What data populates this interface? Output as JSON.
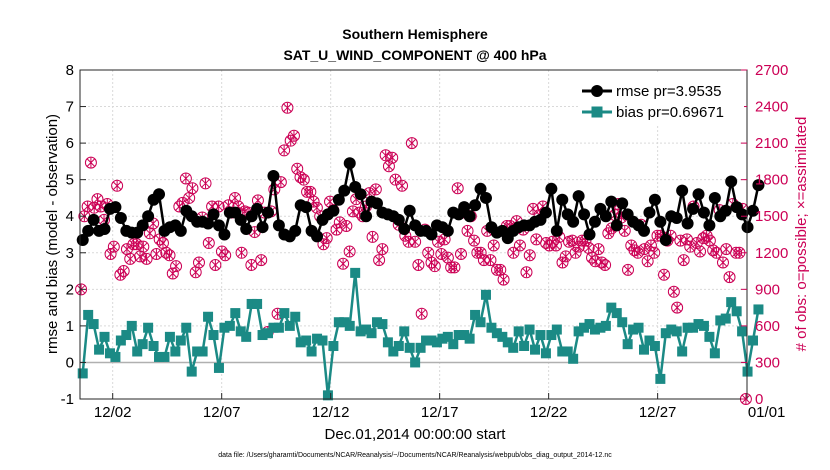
{
  "chart_data": {
    "type": "line",
    "title": "Southern Hemisphere",
    "subtitle": "SAT_U_WIND_COMPONENT @ 400 hPa",
    "xlabel": "Dec.01,2014 00:00:00 start",
    "ylabel_left": "rmse and bias (model - observation)",
    "ylabel_right": "# of obs: o=possible; ×=assimilated",
    "footnote": "data file: /Users/gharamti/Documents/NCAR/Reanalysis/~/Documents/NCAR/Reanalysis/webpub/obs_diag_output_2014-12.nc",
    "xlim": [
      0.5,
      31.1
    ],
    "ylim_left": [
      -1,
      8
    ],
    "ylim_right": [
      0,
      2700
    ],
    "yticks_left": [
      -1,
      0,
      1,
      2,
      3,
      4,
      5,
      6,
      7,
      8
    ],
    "yticks_right": [
      0,
      300,
      600,
      900,
      1200,
      1500,
      1800,
      2100,
      2400,
      2700
    ],
    "xticks": [
      {
        "day": 2,
        "label": "12/02"
      },
      {
        "day": 7,
        "label": "12/07"
      },
      {
        "day": 12,
        "label": "12/12"
      },
      {
        "day": 17,
        "label": "12/17"
      },
      {
        "day": 22,
        "label": "12/22"
      },
      {
        "day": 27,
        "label": "12/27"
      },
      {
        "day": 32,
        "label": "01/01"
      }
    ],
    "x_start": 0.625,
    "x_step": 0.25,
    "series": [
      {
        "name": "rmse",
        "legend": "rmse pr=3.9535",
        "color": "#000000",
        "marker": "circle",
        "values": [
          3.35,
          3.6,
          3.9,
          3.6,
          3.65,
          4.2,
          4.25,
          3.95,
          3.6,
          3.55,
          3.55,
          3.75,
          4.0,
          4.45,
          4.6,
          3.6,
          3.7,
          3.75,
          3.6,
          4.15,
          4.0,
          3.85,
          3.85,
          3.8,
          4.05,
          3.75,
          3.5,
          4.1,
          4.1,
          3.9,
          3.65,
          4.0,
          4.2,
          3.7,
          4.1,
          5.1,
          3.75,
          3.5,
          3.45,
          3.6,
          4.3,
          4.25,
          3.6,
          3.45,
          3.9,
          4.05,
          4.15,
          4.45,
          4.7,
          5.45,
          4.8,
          4.6,
          4.0,
          4.4,
          4.35,
          4.1,
          4.05,
          4.0,
          3.9,
          3.65,
          4.15,
          3.75,
          3.6,
          3.6,
          3.5,
          3.75,
          3.7,
          3.6,
          4.1,
          4.05,
          4.25,
          4.0,
          4.3,
          4.75,
          4.5,
          3.7,
          3.55,
          3.6,
          3.4,
          3.6,
          3.7,
          3.75,
          3.75,
          3.85,
          3.9,
          4.1,
          4.75,
          3.6,
          4.45,
          4.05,
          3.85,
          4.55,
          4.05,
          3.5,
          3.85,
          4.2,
          4.0,
          4.4,
          3.75,
          4.35,
          4.05,
          3.85,
          3.75,
          3.6,
          4.1,
          4.45,
          3.85,
          3.35,
          4.0,
          3.95,
          4.7,
          3.8,
          4.2,
          4.6,
          4.1,
          3.75,
          4.5,
          4.0,
          4.15,
          4.95,
          4.25,
          4.05,
          3.7,
          4.15,
          4.85
        ]
      },
      {
        "name": "bias",
        "legend": "bias pr=0.69671",
        "color": "#1b8a85",
        "marker": "square",
        "values": [
          -0.3,
          1.3,
          1.05,
          0.35,
          0.7,
          0.25,
          0.15,
          0.6,
          0.75,
          1.0,
          0.3,
          0.5,
          0.95,
          0.45,
          0.15,
          0.15,
          0.7,
          0.3,
          0.6,
          0.95,
          -0.25,
          0.3,
          0.3,
          1.25,
          0.75,
          -0.15,
          0.95,
          1.0,
          1.35,
          0.85,
          0.7,
          1.6,
          1.6,
          0.75,
          0.8,
          0.95,
          0.95,
          1.35,
          1.0,
          1.25,
          0.55,
          0.6,
          0.3,
          0.65,
          0.6,
          -0.9,
          0.45,
          1.1,
          1.1,
          1.0,
          2.45,
          0.85,
          0.9,
          0.8,
          1.1,
          1.05,
          0.55,
          0.3,
          0.45,
          0.85,
          0.4,
          0.0,
          0.4,
          0.6,
          0.6,
          0.55,
          0.65,
          0.7,
          0.5,
          0.75,
          0.75,
          0.65,
          1.3,
          1.1,
          1.85,
          0.95,
          0.8,
          0.7,
          0.55,
          0.4,
          0.85,
          0.45,
          0.9,
          0.35,
          0.75,
          0.25,
          0.75,
          0.9,
          0.3,
          0.3,
          0.1,
          0.85,
          0.95,
          1.05,
          0.9,
          0.95,
          1.0,
          1.5,
          1.35,
          1.1,
          0.5,
          0.9,
          0.95,
          0.35,
          0.6,
          0.45,
          -0.45,
          0.8,
          0.9,
          0.85,
          0.3,
          0.95,
          0.95,
          1.05,
          1.0,
          0.7,
          0.25,
          1.15,
          1.2,
          1.65,
          1.4,
          0.85,
          -0.25,
          0.6,
          1.45
        ]
      },
      {
        "name": "obs",
        "legend": "",
        "color": "#cc0055",
        "marker": "circle-x",
        "axis": "right",
        "values": [
          900,
          1500,
          1580,
          1940,
          1570,
          1640,
          1580,
          1470,
          1600,
          1190,
          1250,
          1750,
          1020,
          1050,
          1230,
          1150,
          1270,
          1270,
          1170,
          1250,
          1150,
          1360,
          1440,
          1190,
          1310,
          1280,
          1200,
          1180,
          1030,
          1090,
          1580,
          1610,
          1810,
          1650,
          1730,
          1040,
          1120,
          1490,
          1770,
          1280,
          1580,
          1100,
          1580,
          1210,
          1180,
          1590,
          1530,
          1650,
          1580,
          1200,
          1540,
          1530,
          1100,
          1370,
          1630,
          1140,
          1530,
          550,
          1540,
          1720,
          700,
          1780,
          2040,
          2390,
          2120,
          2160,
          1890,
          1820,
          1800,
          1700,
          1700,
          1620,
          1570,
          1500,
          1270,
          1320,
          1620,
          1550,
          1390,
          1450,
          1110,
          1420,
          1210,
          1540,
          1640,
          1530,
          1500,
          1580,
          1690,
          1330,
          1720,
          1140,
          1230,
          2000,
          1910,
          1980,
          1800,
          1430,
          1750,
          1340,
          1290,
          2100,
          1290,
          1100,
          700,
          1390,
          1200,
          1120,
          1090,
          1290,
          1190,
          1310,
          1160,
          1080,
          1080,
          1730,
          1190,
          1530,
          1380,
          1500,
          1300,
          1200,
          1200,
          1140,
          1380,
          1140,
          1260,
          1060,
          1060,
          980,
          1420,
          1420,
          1200,
          1460,
          1260,
          1390,
          1040,
          1180,
          1560,
          1310,
          1510,
          1580,
          1280,
          1260,
          1290,
          1260,
          1330,
          1120,
          1170,
          1290,
          1300,
          1200,
          1250,
          1300,
          1300,
          1240,
          1160,
          1130,
          1230,
          1120,
          1100,
          1360,
          1400,
          1510,
          1600,
          1490,
          1380,
          1060,
          1260,
          1220,
          1200,
          1430,
          1230,
          1130,
          1260,
          1200,
          1340,
          1340,
          1020,
          1300,
          1340,
          880,
          750,
          1300,
          1140,
          1310,
          1250,
          1580,
          1280,
          1210,
          1320,
          1340,
          1300,
          1220,
          1200,
          1550,
          1120,
          1230,
          1000,
          1600,
          1200,
          1200,
          1560,
          0
        ]
      }
    ]
  }
}
